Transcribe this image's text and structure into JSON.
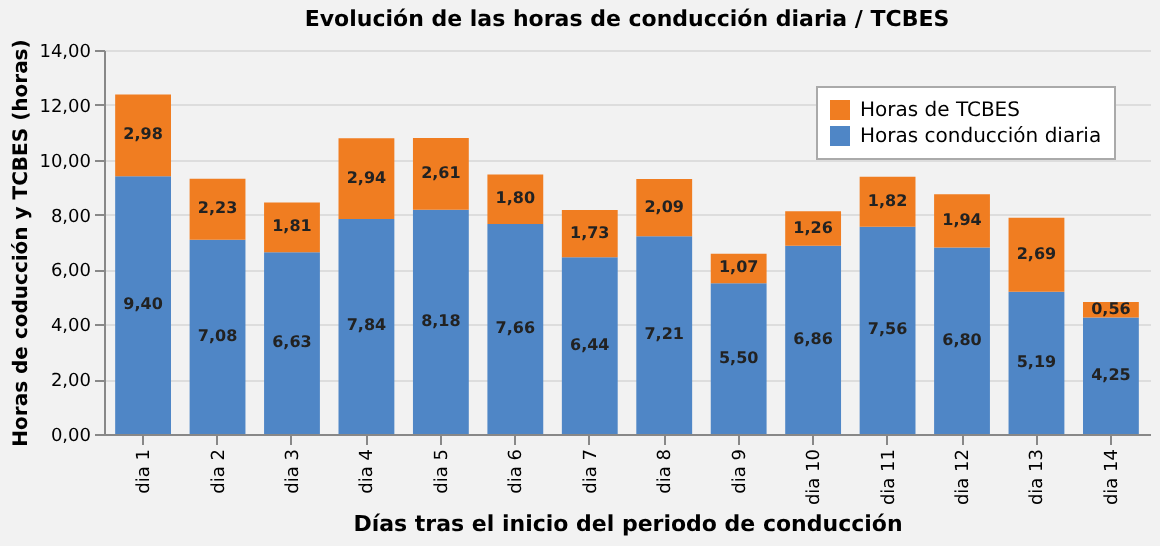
{
  "chart_data": {
    "type": "bar",
    "stacked": true,
    "title": "Evolución de las horas de conducción diaria / TCBES",
    "xlabel": "Días tras el inicio del periodo de conducción",
    "ylabel": "Horas de coducción y TCBES (horas)",
    "categories": [
      "dia 1",
      "dia 2",
      "dia 3",
      "dia 4",
      "dia 5",
      "dia 6",
      "dia 7",
      "dia 8",
      "dia 9",
      "dia 10",
      "dia 11",
      "dia 12",
      "dia 13",
      "dia 14"
    ],
    "series": [
      {
        "name": "Horas conducción diaria",
        "color": "#4f86c6",
        "values": [
          9.4,
          7.08,
          6.63,
          7.84,
          8.18,
          7.66,
          6.44,
          7.21,
          5.5,
          6.86,
          7.56,
          6.8,
          5.19,
          4.25
        ],
        "value_labels": [
          "9,40",
          "7,08",
          "6,63",
          "7,84",
          "8,18",
          "7,66",
          "6,44",
          "7,21",
          "5,50",
          "6,86",
          "7,56",
          "6,80",
          "5,19",
          "4,25"
        ]
      },
      {
        "name": "Horas de TCBES",
        "color": "#f07d21",
        "values": [
          2.98,
          2.23,
          1.81,
          2.94,
          2.61,
          1.8,
          1.73,
          2.09,
          1.07,
          1.26,
          1.82,
          1.94,
          2.69,
          0.56
        ],
        "value_labels": [
          "2,98",
          "2,23",
          "1,81",
          "2,94",
          "2,61",
          "1,80",
          "1,73",
          "2,09",
          "1,07",
          "1,26",
          "1,82",
          "1,94",
          "2,69",
          "0,56"
        ]
      }
    ],
    "ylim": [
      0,
      14
    ],
    "yticks": [
      {
        "value": 0,
        "label": "0,00"
      },
      {
        "value": 2,
        "label": "2,00"
      },
      {
        "value": 4,
        "label": "4,00"
      },
      {
        "value": 6,
        "label": "6,00"
      },
      {
        "value": 8,
        "label": "8,00"
      },
      {
        "value": 10,
        "label": "10,00"
      },
      {
        "value": 12,
        "label": "12,00"
      },
      {
        "value": 14,
        "label": "14,00"
      }
    ],
    "grid": "y",
    "legend": "top right"
  }
}
